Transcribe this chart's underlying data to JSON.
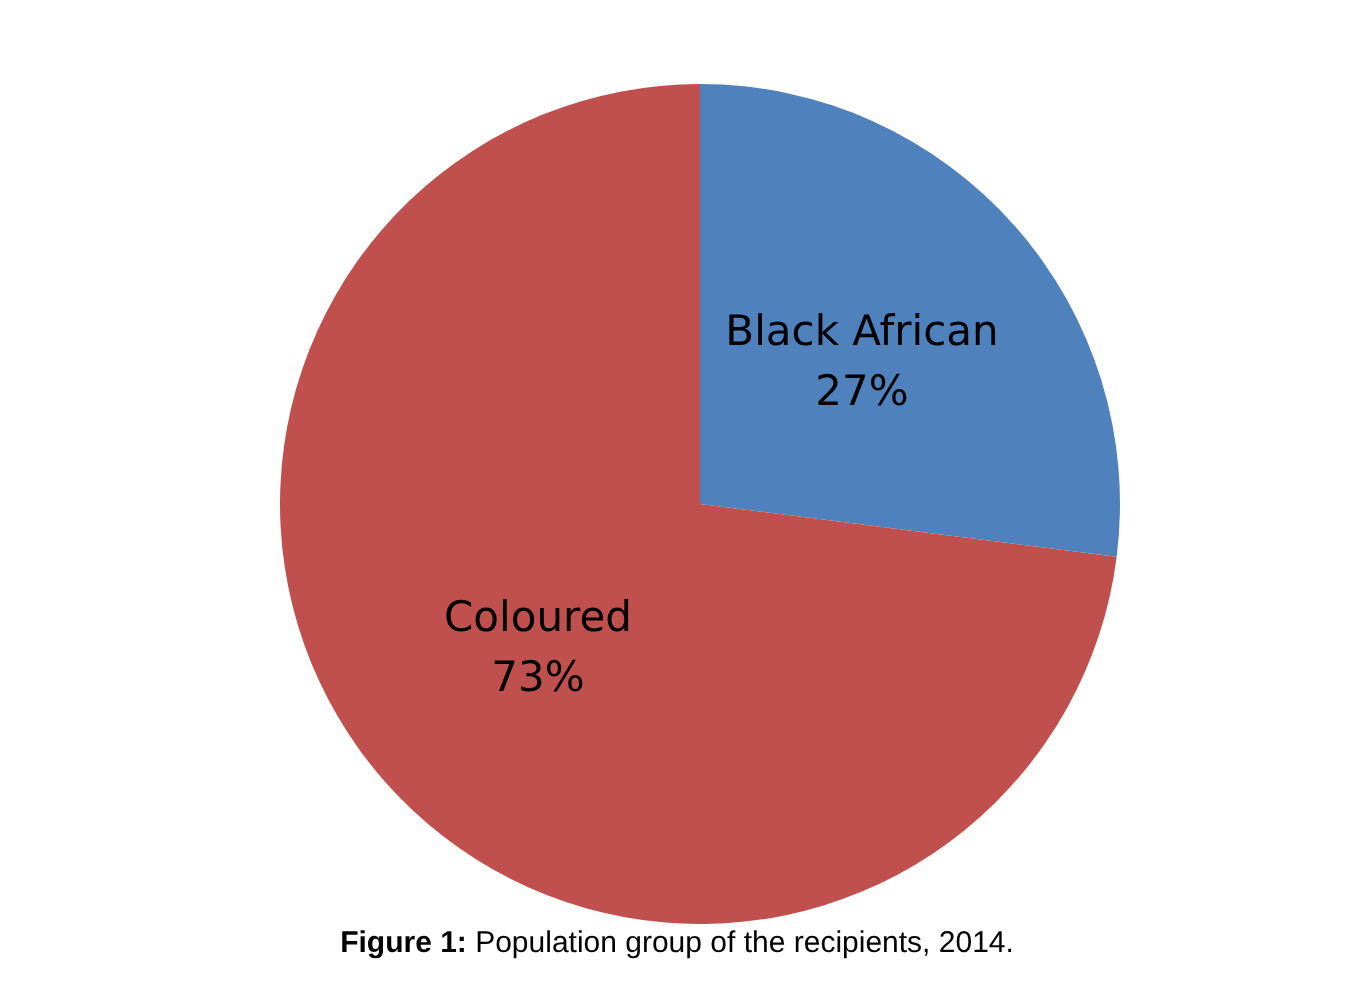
{
  "chart_data": {
    "type": "pie",
    "title": "Figure 1: Population group of the recipients, 2014.",
    "categories": [
      "Black African",
      "Coloured"
    ],
    "values": [
      27,
      73
    ],
    "colors": [
      "#4f81bd",
      "#c0504d"
    ],
    "value_labels": [
      "27%",
      "73%"
    ],
    "legend": false
  }
}
